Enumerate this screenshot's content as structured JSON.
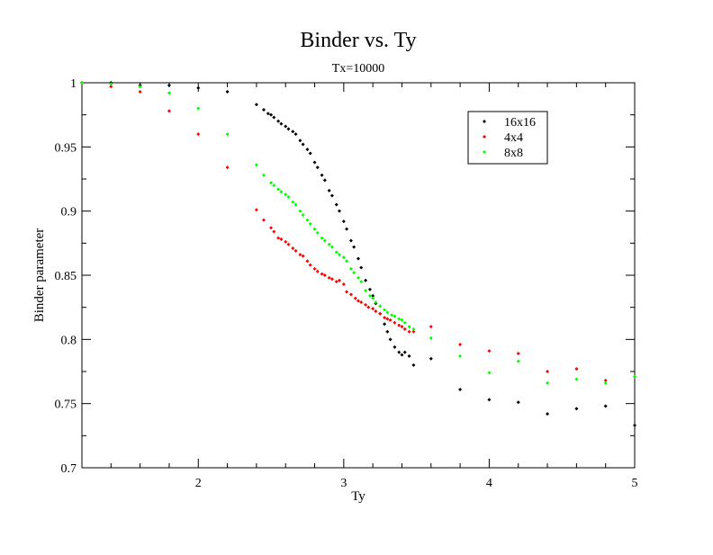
{
  "chart_data": {
    "type": "scatter",
    "title": "Binder vs. Ty",
    "subtitle": "Tx=10000",
    "xlabel": "Ty",
    "ylabel": "Binder parameter",
    "xlim": [
      1.2,
      5.0
    ],
    "ylim": [
      0.7,
      1.0
    ],
    "x_ticks": [
      2,
      3,
      4,
      5
    ],
    "x_tick_labels": [
      "2",
      "3",
      "4",
      "5"
    ],
    "y_ticks": [
      0.7,
      0.75,
      0.8,
      0.85,
      0.9,
      0.95,
      1.0
    ],
    "y_tick_labels": [
      "0.7",
      "0.75",
      "0.8",
      "0.85",
      "0.9",
      "0.95",
      "1"
    ],
    "grid": false,
    "legend_position": "top-right",
    "series": [
      {
        "name": "16x16",
        "color": "#000000",
        "points": [
          [
            1.2,
            1.0
          ],
          [
            1.4,
            1.0
          ],
          [
            1.6,
            0.998
          ],
          [
            1.8,
            0.998
          ],
          [
            2.0,
            0.996
          ],
          [
            2.2,
            0.993
          ],
          [
            2.4,
            0.983
          ],
          [
            2.45,
            0.979
          ],
          [
            2.48,
            0.976
          ],
          [
            2.5,
            0.975
          ],
          [
            2.52,
            0.973
          ],
          [
            2.55,
            0.97
          ],
          [
            2.57,
            0.968
          ],
          [
            2.6,
            0.966
          ],
          [
            2.62,
            0.964
          ],
          [
            2.65,
            0.962
          ],
          [
            2.67,
            0.96
          ],
          [
            2.7,
            0.955
          ],
          [
            2.72,
            0.952
          ],
          [
            2.75,
            0.948
          ],
          [
            2.77,
            0.945
          ],
          [
            2.8,
            0.938
          ],
          [
            2.82,
            0.934
          ],
          [
            2.85,
            0.928
          ],
          [
            2.87,
            0.924
          ],
          [
            2.9,
            0.916
          ],
          [
            2.92,
            0.912
          ],
          [
            2.95,
            0.905
          ],
          [
            2.97,
            0.9
          ],
          [
            3.0,
            0.892
          ],
          [
            3.02,
            0.886
          ],
          [
            3.05,
            0.877
          ],
          [
            3.07,
            0.872
          ],
          [
            3.1,
            0.863
          ],
          [
            3.12,
            0.856
          ],
          [
            3.15,
            0.846
          ],
          [
            3.18,
            0.839
          ],
          [
            3.2,
            0.834
          ],
          [
            3.22,
            0.828
          ],
          [
            3.25,
            0.82
          ],
          [
            3.28,
            0.812
          ],
          [
            3.3,
            0.806
          ],
          [
            3.32,
            0.8
          ],
          [
            3.35,
            0.794
          ],
          [
            3.38,
            0.79
          ],
          [
            3.4,
            0.788
          ],
          [
            3.42,
            0.79
          ],
          [
            3.45,
            0.787
          ],
          [
            3.48,
            0.78
          ],
          [
            3.6,
            0.785
          ],
          [
            3.8,
            0.761
          ],
          [
            4.0,
            0.753
          ],
          [
            4.2,
            0.751
          ],
          [
            4.4,
            0.742
          ],
          [
            4.6,
            0.746
          ],
          [
            4.8,
            0.748
          ],
          [
            5.0,
            0.733
          ]
        ]
      },
      {
        "name": "4x4",
        "color": "#ff0000",
        "points": [
          [
            1.2,
            1.0
          ],
          [
            1.4,
            0.997
          ],
          [
            1.6,
            0.993
          ],
          [
            1.8,
            0.978
          ],
          [
            2.0,
            0.96
          ],
          [
            2.2,
            0.934
          ],
          [
            2.4,
            0.901
          ],
          [
            2.45,
            0.893
          ],
          [
            2.5,
            0.887
          ],
          [
            2.52,
            0.884
          ],
          [
            2.55,
            0.879
          ],
          [
            2.57,
            0.878
          ],
          [
            2.6,
            0.876
          ],
          [
            2.62,
            0.874
          ],
          [
            2.65,
            0.871
          ],
          [
            2.67,
            0.869
          ],
          [
            2.7,
            0.866
          ],
          [
            2.72,
            0.865
          ],
          [
            2.75,
            0.861
          ],
          [
            2.77,
            0.858
          ],
          [
            2.8,
            0.855
          ],
          [
            2.82,
            0.853
          ],
          [
            2.85,
            0.851
          ],
          [
            2.87,
            0.85
          ],
          [
            2.9,
            0.848
          ],
          [
            2.92,
            0.847
          ],
          [
            2.95,
            0.845
          ],
          [
            2.97,
            0.846
          ],
          [
            3.0,
            0.843
          ],
          [
            3.02,
            0.837
          ],
          [
            3.05,
            0.835
          ],
          [
            3.08,
            0.832
          ],
          [
            3.1,
            0.83
          ],
          [
            3.12,
            0.829
          ],
          [
            3.15,
            0.827
          ],
          [
            3.17,
            0.825
          ],
          [
            3.2,
            0.824
          ],
          [
            3.22,
            0.822
          ],
          [
            3.25,
            0.82
          ],
          [
            3.28,
            0.817
          ],
          [
            3.3,
            0.816
          ],
          [
            3.32,
            0.815
          ],
          [
            3.35,
            0.813
          ],
          [
            3.38,
            0.811
          ],
          [
            3.4,
            0.81
          ],
          [
            3.42,
            0.808
          ],
          [
            3.45,
            0.806
          ],
          [
            3.48,
            0.806
          ],
          [
            3.6,
            0.81
          ],
          [
            3.8,
            0.796
          ],
          [
            4.0,
            0.791
          ],
          [
            4.2,
            0.789
          ],
          [
            4.4,
            0.775
          ],
          [
            4.6,
            0.777
          ],
          [
            4.8,
            0.768
          ],
          [
            5.0,
            0.771
          ]
        ]
      },
      {
        "name": "8x8",
        "color": "#00ff00",
        "points": [
          [
            1.2,
            1.0
          ],
          [
            1.4,
            0.999
          ],
          [
            1.6,
            0.997
          ],
          [
            1.8,
            0.992
          ],
          [
            2.0,
            0.98
          ],
          [
            2.2,
            0.96
          ],
          [
            2.4,
            0.936
          ],
          [
            2.45,
            0.928
          ],
          [
            2.5,
            0.922
          ],
          [
            2.52,
            0.92
          ],
          [
            2.55,
            0.917
          ],
          [
            2.57,
            0.915
          ],
          [
            2.6,
            0.913
          ],
          [
            2.62,
            0.911
          ],
          [
            2.65,
            0.907
          ],
          [
            2.67,
            0.905
          ],
          [
            2.7,
            0.9
          ],
          [
            2.72,
            0.897
          ],
          [
            2.75,
            0.893
          ],
          [
            2.77,
            0.89
          ],
          [
            2.8,
            0.886
          ],
          [
            2.82,
            0.883
          ],
          [
            2.85,
            0.879
          ],
          [
            2.87,
            0.877
          ],
          [
            2.9,
            0.874
          ],
          [
            2.92,
            0.872
          ],
          [
            2.95,
            0.868
          ],
          [
            2.97,
            0.866
          ],
          [
            3.0,
            0.864
          ],
          [
            3.02,
            0.861
          ],
          [
            3.05,
            0.855
          ],
          [
            3.07,
            0.852
          ],
          [
            3.1,
            0.848
          ],
          [
            3.12,
            0.845
          ],
          [
            3.15,
            0.838
          ],
          [
            3.18,
            0.834
          ],
          [
            3.2,
            0.832
          ],
          [
            3.22,
            0.829
          ],
          [
            3.25,
            0.826
          ],
          [
            3.28,
            0.823
          ],
          [
            3.3,
            0.821
          ],
          [
            3.33,
            0.819
          ],
          [
            3.35,
            0.818
          ],
          [
            3.38,
            0.816
          ],
          [
            3.4,
            0.815
          ],
          [
            3.42,
            0.813
          ],
          [
            3.45,
            0.81
          ],
          [
            3.48,
            0.808
          ],
          [
            3.6,
            0.801
          ],
          [
            3.8,
            0.787
          ],
          [
            4.0,
            0.774
          ],
          [
            4.2,
            0.783
          ],
          [
            4.4,
            0.766
          ],
          [
            4.6,
            0.769
          ],
          [
            4.8,
            0.766
          ],
          [
            5.0,
            0.771
          ]
        ]
      }
    ]
  }
}
